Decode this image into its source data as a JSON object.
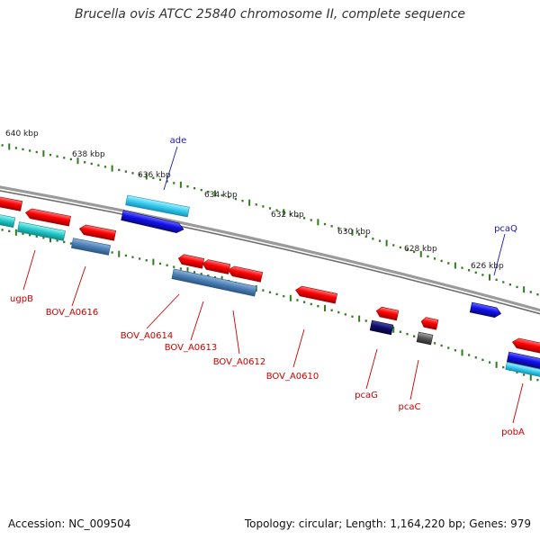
{
  "title": "Brucella ovis ATCC 25840 chromosome II, complete sequence",
  "footer": {
    "accession": "Accession: NC_009504",
    "stats": "Topology: circular; Length: 1,164,220 bp; Genes: 979"
  },
  "colors": {
    "backbone": "#888888",
    "tick": "#2f7d1c",
    "forward_label": "#1a1aa6",
    "reverse_label": "#cc0000",
    "red": "#ff0000",
    "blue": "#1111ee",
    "cyan": "#33ccee",
    "teal": "#22c8c8",
    "steel": "#4a7fb5",
    "navy": "#0b0b66",
    "grey": "#555555"
  },
  "scale": {
    "unit": "kbp",
    "labels": [
      "640 kbp",
      "638 kbp",
      "636 kbp",
      "634 kbp",
      "632 kbp",
      "630 kbp",
      "628 kbp",
      "626 kbp"
    ]
  },
  "genes": {
    "forward_labels": [
      "ade",
      "pcaQ"
    ],
    "reverse_labels": [
      "ugpB",
      "BOV_A0616",
      "BOV_A0614",
      "BOV_A0613",
      "BOV_A0612",
      "BOV_A0610",
      "pcaG",
      "pcaC",
      "pobA"
    ]
  }
}
